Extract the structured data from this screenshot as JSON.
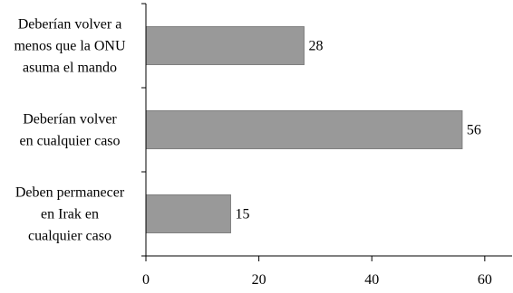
{
  "chart_data": {
    "type": "bar",
    "orientation": "horizontal",
    "categories": [
      [
        "Deberían volver a",
        "menos que la ONU",
        "asuma el mando"
      ],
      [
        "Deberían volver",
        "en cualquier caso"
      ],
      [
        "Deben permanecer",
        "en Irak en",
        "cualquier caso"
      ]
    ],
    "values": [
      28,
      56,
      15
    ],
    "data_labels": [
      "28",
      "56",
      "15"
    ],
    "xlim": [
      0,
      65
    ],
    "xticks": [
      0,
      20,
      40,
      60
    ],
    "xtick_labels": [
      "0",
      "20",
      "40",
      "60"
    ],
    "grid": false,
    "legend": "none",
    "title": "",
    "xlabel": "",
    "ylabel": "",
    "colors": {
      "bar": "#999999",
      "bar_stroke": "#7f7f7f",
      "axis": "#000000"
    }
  }
}
